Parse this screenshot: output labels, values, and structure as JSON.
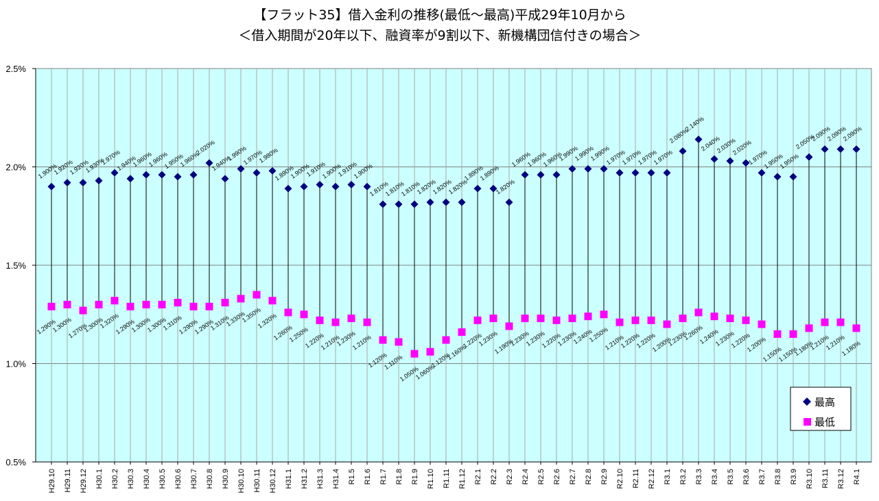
{
  "chart_data": {
    "type": "line",
    "title": "【フラット35】借入金利の推移(最低～最高)平成29年10月から",
    "subtitle": "＜借入期間が20年以下、融資率が9割以下、新機構団信付きの場合＞",
    "categories": [
      "H29.10",
      "H29.11",
      "H29.12",
      "H30.1",
      "H30.2",
      "H30.3",
      "H30.4",
      "H30.5",
      "H30.6",
      "H30.7",
      "H30.8",
      "H30.9",
      "H30.10",
      "H30.11",
      "H30.12",
      "H31.1",
      "H31.2",
      "H31.3",
      "H31.4",
      "R1.5",
      "R1.6",
      "R1.7",
      "R1.8",
      "R1.9",
      "R1.10",
      "R1.11",
      "R1.12",
      "R2.1",
      "R2.2",
      "R2.3",
      "R2.4",
      "R2.5",
      "R2.6",
      "R2.7",
      "R2.8",
      "R2.9",
      "R2.10",
      "R2.11",
      "R2.12",
      "R3.1",
      "R3.2",
      "R3.3",
      "R3.4",
      "R3.5",
      "R3.6",
      "R3.7",
      "R3.8",
      "R3.9",
      "R3.10",
      "R3.11",
      "R3.12",
      "R4.1"
    ],
    "series": [
      {
        "name": "最高",
        "marker": "diamond",
        "color": "#000080",
        "values": [
          1.9,
          1.92,
          1.92,
          1.93,
          1.97,
          1.94,
          1.96,
          1.96,
          1.95,
          1.96,
          2.02,
          1.94,
          1.99,
          1.97,
          1.98,
          1.89,
          1.9,
          1.91,
          1.9,
          1.91,
          1.9,
          1.81,
          1.81,
          1.81,
          1.82,
          1.82,
          1.82,
          1.89,
          1.89,
          1.82,
          1.96,
          1.96,
          1.96,
          1.99,
          1.99,
          1.99,
          1.97,
          1.97,
          1.97,
          1.97,
          2.08,
          2.14,
          2.04,
          2.03,
          2.02,
          1.97,
          1.95,
          1.95,
          2.05,
          2.09,
          2.09,
          2.09
        ]
      },
      {
        "name": "最低",
        "marker": "square",
        "color": "#FF00FF",
        "values": [
          1.29,
          1.3,
          1.27,
          1.3,
          1.32,
          1.29,
          1.3,
          1.3,
          1.31,
          1.29,
          1.29,
          1.31,
          1.33,
          1.35,
          1.32,
          1.26,
          1.25,
          1.22,
          1.21,
          1.23,
          1.21,
          1.12,
          1.11,
          1.05,
          1.06,
          1.12,
          1.16,
          1.22,
          1.23,
          1.19,
          1.23,
          1.23,
          1.22,
          1.23,
          1.24,
          1.25,
          1.21,
          1.22,
          1.22,
          1.2,
          1.23,
          1.26,
          1.24,
          1.23,
          1.22,
          1.2,
          1.15,
          1.15,
          1.18,
          1.21,
          1.21,
          1.18
        ]
      }
    ],
    "ylim": [
      0.5,
      2.5
    ],
    "yticks": [
      0.5,
      1.0,
      1.5,
      2.0,
      2.5
    ],
    "ytick_labels": [
      "0.5%",
      "1.0%",
      "1.5%",
      "2.0%",
      "2.5%"
    ],
    "data_labels": true,
    "high_low_lines": true,
    "grid": true,
    "legend_position": "bottom-right",
    "plot_background": "#CCFFFF",
    "gridline_color": "#808080",
    "high_low_line_color": "#000000"
  }
}
